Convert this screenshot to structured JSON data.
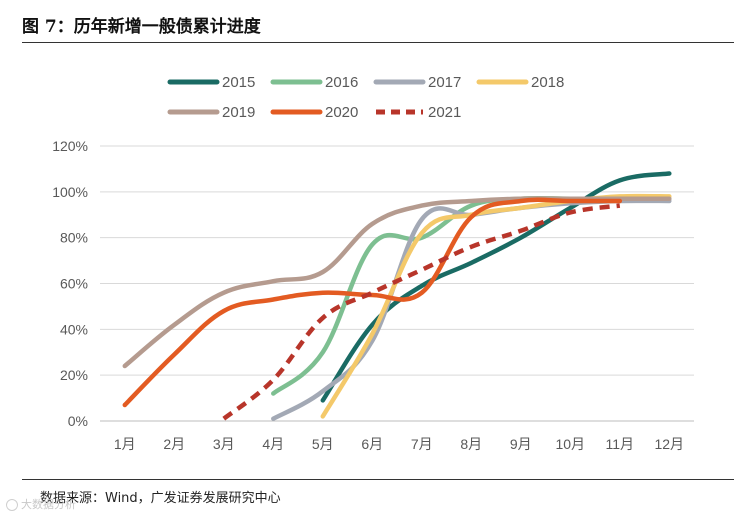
{
  "figure": {
    "title": "图 7：历年新增一般债累计进度",
    "source": "数据来源：Wind，广发证券发展研究中心",
    "watermark": "大数据分析"
  },
  "chart_data": {
    "type": "line",
    "title": "历年新增一般债累计进度",
    "xlabel": "",
    "ylabel": "",
    "categories": [
      "1月",
      "2月",
      "3月",
      "4月",
      "5月",
      "6月",
      "7月",
      "8月",
      "9月",
      "10月",
      "11月",
      "12月"
    ],
    "ylim": [
      0,
      120
    ],
    "yticks": [
      0,
      20,
      40,
      60,
      80,
      100,
      120
    ],
    "ytick_labels": [
      "0%",
      "20%",
      "40%",
      "60%",
      "80%",
      "100%",
      "120%"
    ],
    "grid": true,
    "legend_position": "top",
    "series": [
      {
        "name": "2015",
        "color": "#1a6b64",
        "dash": false,
        "values": [
          null,
          null,
          null,
          null,
          9,
          42,
          59,
          69,
          80,
          93,
          105,
          108
        ]
      },
      {
        "name": "2016",
        "color": "#7dbf91",
        "dash": false,
        "values": [
          null,
          null,
          null,
          12,
          30,
          77,
          80,
          94,
          97,
          97,
          97,
          97
        ]
      },
      {
        "name": "2017",
        "color": "#a3a9b5",
        "dash": false,
        "values": [
          null,
          null,
          null,
          1,
          13,
          35,
          88,
          90,
          93,
          95,
          96,
          96
        ]
      },
      {
        "name": "2018",
        "color": "#f4c96a",
        "dash": false,
        "values": [
          null,
          null,
          null,
          null,
          2,
          38,
          82,
          90,
          93,
          96,
          98,
          98
        ]
      },
      {
        "name": "2019",
        "color": "#b59b8f",
        "dash": false,
        "values": [
          24,
          42,
          56,
          61,
          65,
          86,
          94,
          96,
          97,
          97,
          97,
          97
        ]
      },
      {
        "name": "2020",
        "color": "#e35b22",
        "dash": false,
        "values": [
          7,
          29,
          48,
          53,
          56,
          55,
          56,
          89,
          96,
          96,
          96,
          null
        ]
      },
      {
        "name": "2021",
        "color": "#b8352a",
        "dash": true,
        "values": [
          null,
          null,
          1,
          18,
          45,
          56,
          66,
          76,
          83,
          91,
          94,
          null
        ]
      }
    ]
  }
}
